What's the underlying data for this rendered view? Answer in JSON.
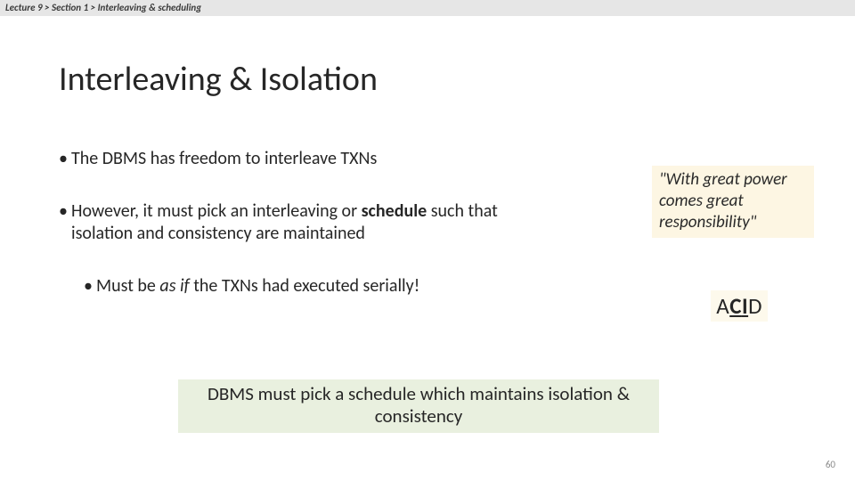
{
  "breadcrumb": "Lecture 9 > Section 1 > Interleaving & scheduling",
  "title": "Interleaving & Isolation",
  "bullet1": "The DBMS has freedom to interleave TXNs",
  "bullet2_pre": "However, it must pick an interleaving or ",
  "bullet2_bold": "schedule",
  "bullet2_post": " such that isolation and consistency are maintained",
  "bullet3_pre": "Must be ",
  "bullet3_ital": "as if",
  "bullet3_post": " the TXNs had executed serially!",
  "quote": "\"With great power comes great responsibility\"",
  "acid": {
    "a": "A",
    "c": "C",
    "i": "I",
    "d": "D"
  },
  "footer": "DBMS must pick a schedule which maintains isolation & consistency",
  "page_number": "60",
  "colors": {
    "breadcrumb_bg": "#e6e6e6",
    "quote_bg": "#fdf6e3",
    "acid_bg": "#fdf9ec",
    "footer_bg": "#e9f0df",
    "text": "#262626",
    "pagenum": "#8a8a8a"
  }
}
